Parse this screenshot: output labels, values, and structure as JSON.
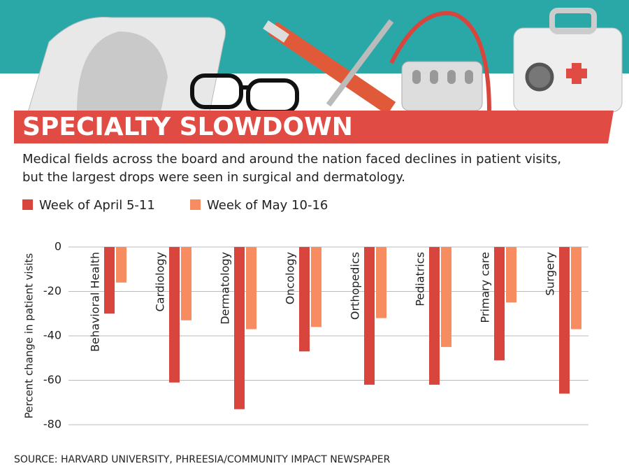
{
  "chart_data": {
    "type": "bar",
    "title": "SPECIALTY SLOWDOWN",
    "subtitle": [
      "Medical fields across the board and around the nation faced declines in patient visits,",
      "but the largest drops were seen in surgical and dermatology."
    ],
    "y_label": "Percent change in patient visits",
    "source": "SOURCE: HARVARD UNIVERSITY, PHREESIA/COMMUNITY IMPACT NEWSPAPER",
    "categories": [
      "Behavioral Health",
      "Cardiology",
      "Dermatology",
      "Oncology",
      "Orthopedics",
      "Pediatrics",
      "Primary care",
      "Surgery"
    ],
    "series": [
      {
        "name": "Week of April 5-11",
        "color": "#d8453c",
        "values": [
          -30,
          -61,
          -73,
          -47,
          -62,
          -62,
          -51,
          -66
        ]
      },
      {
        "name": "Week of May 10-16",
        "color": "#f68c5f",
        "values": [
          -16,
          -33,
          -37,
          -36,
          -32,
          -45,
          -25,
          -37
        ]
      }
    ],
    "ylim": [
      -80,
      0
    ],
    "yticks": [
      0,
      -20,
      -40,
      -60,
      -80
    ],
    "grid": true
  }
}
